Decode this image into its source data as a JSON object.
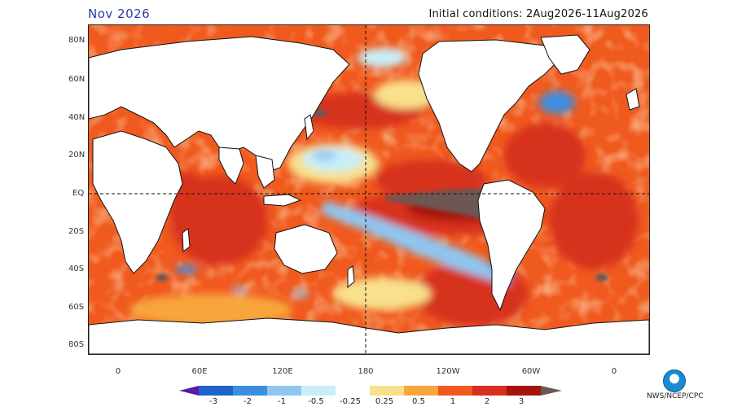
{
  "header": {
    "forecast_month": "Nov 2026",
    "initial_conditions": "Initial conditions: 2Aug2026-11Aug2026"
  },
  "map": {
    "lat_labels": [
      "80N",
      "60N",
      "40N",
      "20N",
      "EQ",
      "20S",
      "40S",
      "60S",
      "80S"
    ],
    "lon_labels": [
      "0",
      "60E",
      "120E",
      "180",
      "120W",
      "60W",
      "0"
    ],
    "colors": {
      "land": "#ffffff",
      "coast": "#111111",
      "neg3": "#5a1aa8",
      "neg2": "#1f62c9",
      "neg1": "#3c8fe0",
      "neg05": "#8ec6f0",
      "neg025": "#c9eef8",
      "neutral": "#ffffff",
      "pos025": "#f8e08c",
      "pos05": "#f7a63b",
      "pos1": "#f05a1e",
      "pos2": "#d7301f",
      "pos3": "#a5150f",
      "pos_max": "#6e5653"
    }
  },
  "colorbar": {
    "labels": [
      "-3",
      "-2",
      "-1",
      "-0.5",
      "-0.25",
      "0.25",
      "0.5",
      "1",
      "2",
      "3"
    ]
  },
  "credit": "NWS/NCEP/CPC"
}
